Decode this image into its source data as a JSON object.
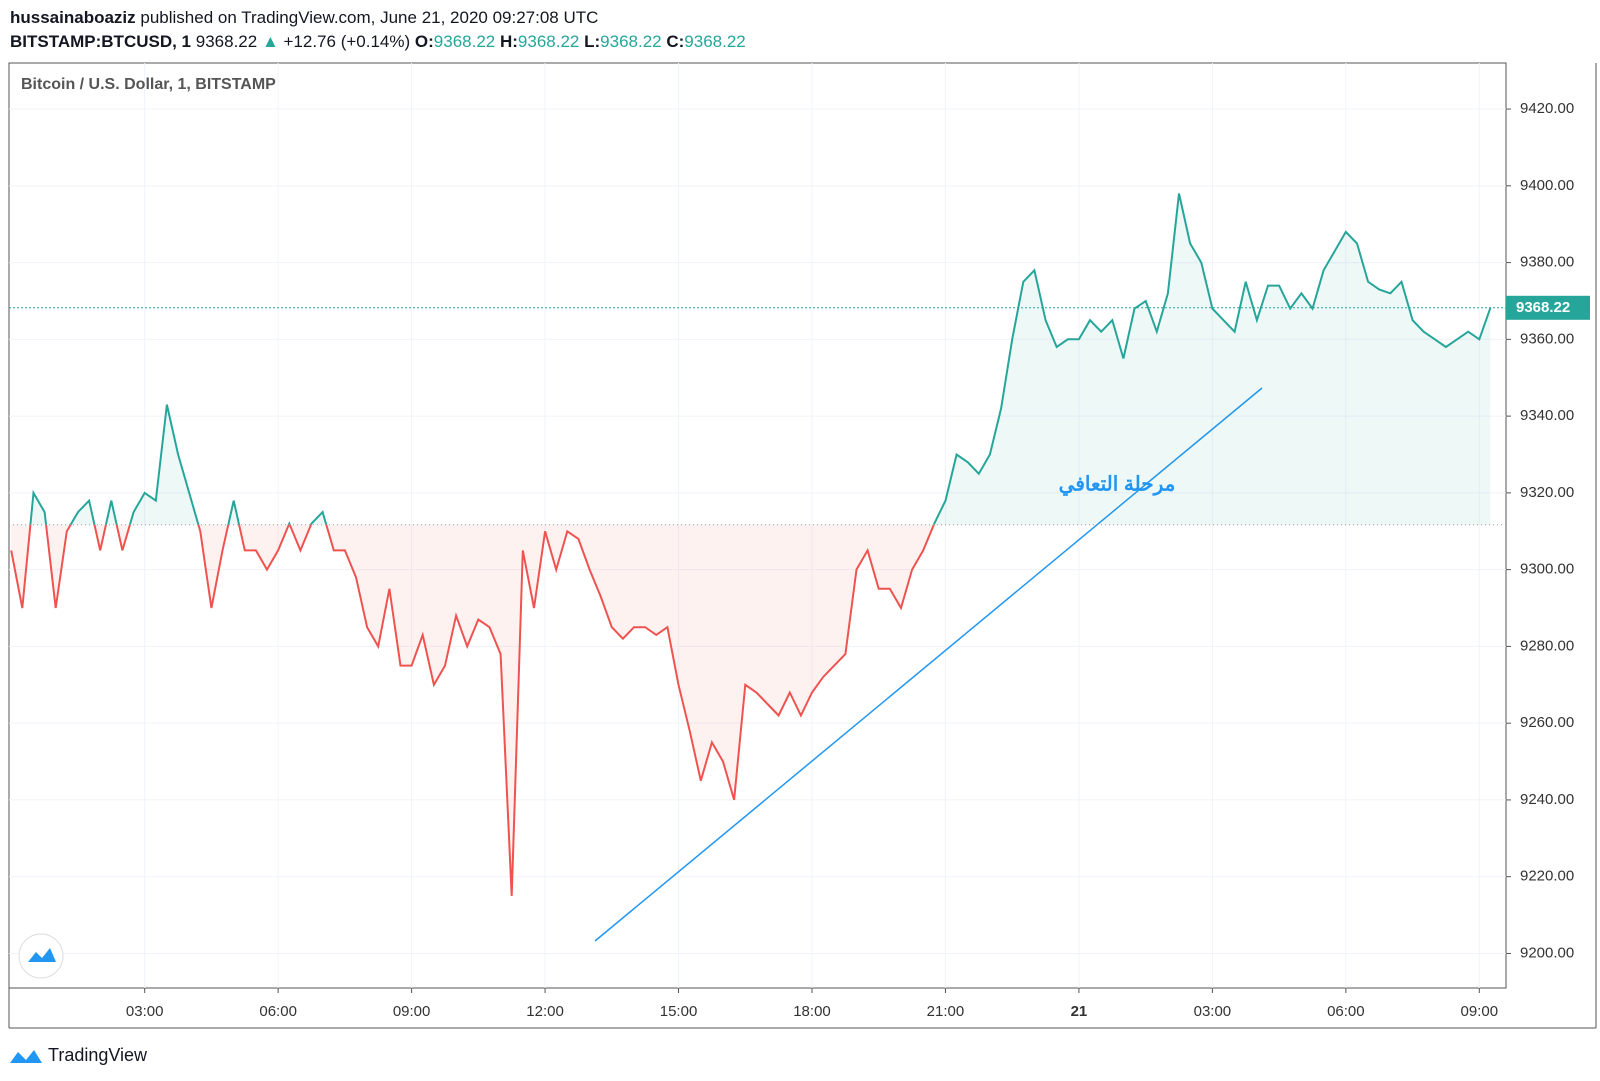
{
  "header": {
    "author": "hussainaboaziz",
    "published": "published on TradingView.com, June 21, 2020 09:27:08 UTC",
    "symbol": "BITSTAMP:BTCUSD, 1",
    "last": "9368.22",
    "arrow": "▲",
    "change": "+12.76 (+0.14%)",
    "ohlc": [
      {
        "label": "O:",
        "value": "9368.22"
      },
      {
        "label": "H:",
        "value": "9368.22"
      },
      {
        "label": "L:",
        "value": "9368.22"
      },
      {
        "label": "C:",
        "value": "9368.22"
      }
    ]
  },
  "chart_data": {
    "type": "baseline",
    "title": "Bitcoin / U.S. Dollar, 1, BITSTAMP",
    "x": [
      0,
      0.25,
      0.5,
      0.75,
      1,
      1.25,
      1.5,
      1.75,
      2,
      2.25,
      2.5,
      2.75,
      3,
      3.25,
      3.5,
      3.75,
      4,
      4.25,
      4.5,
      4.75,
      5,
      5.25,
      5.5,
      5.75,
      6,
      6.25,
      6.5,
      6.75,
      7,
      7.25,
      7.5,
      7.75,
      8,
      8.25,
      8.5,
      8.75,
      9,
      9.25,
      9.5,
      9.75,
      10,
      10.25,
      10.5,
      10.75,
      11,
      11.25,
      11.5,
      11.75,
      12,
      12.25,
      12.5,
      12.75,
      13,
      13.25,
      13.5,
      13.75,
      14,
      14.25,
      14.5,
      14.75,
      15,
      15.25,
      15.5,
      15.75,
      16,
      16.25,
      16.5,
      16.75,
      17,
      17.25,
      17.5,
      17.75,
      18,
      18.25,
      18.5,
      18.75,
      19,
      19.25,
      19.5,
      19.75,
      20,
      20.25,
      20.5,
      20.75,
      21,
      21.25,
      21.5,
      21.75,
      22,
      22.25,
      22.5,
      22.75,
      23,
      23.25,
      23.5,
      23.75,
      24,
      24.25,
      24.5,
      24.75,
      25,
      25.25,
      25.5,
      25.75,
      26,
      26.25,
      26.5,
      26.75,
      27,
      27.25,
      27.5,
      27.75,
      28,
      28.25,
      28.5,
      28.75,
      29,
      29.25,
      29.5,
      29.75,
      30,
      30.25,
      30.5,
      30.75,
      31,
      31.25,
      31.5,
      31.75,
      32,
      32.25,
      32.5,
      32.75,
      33,
      33.25
    ],
    "values": [
      9305,
      9290,
      9320,
      9315,
      9290,
      9310,
      9315,
      9318,
      9305,
      9318,
      9305,
      9315,
      9320,
      9318,
      9343,
      9330,
      9320,
      9310,
      9290,
      9305,
      9318,
      9305,
      9305,
      9300,
      9305,
      9312,
      9305,
      9312,
      9315,
      9305,
      9305,
      9298,
      9285,
      9280,
      9295,
      9275,
      9275,
      9283,
      9270,
      9275,
      9288,
      9280,
      9287,
      9285,
      9278,
      9215,
      9305,
      9290,
      9310,
      9300,
      9310,
      9308,
      9300,
      9293,
      9285,
      9282,
      9285,
      9285,
      9283,
      9285,
      9270,
      9258,
      9245,
      9255,
      9250,
      9240,
      9270,
      9268,
      9265,
      9262,
      9268,
      9262,
      9268,
      9272,
      9275,
      9278,
      9300,
      9305,
      9295,
      9295,
      9290,
      9300,
      9305,
      9312,
      9318,
      9330,
      9328,
      9325,
      9330,
      9342,
      9360,
      9375,
      9378,
      9365,
      9358,
      9360,
      9360,
      9365,
      9362,
      9365,
      9355,
      9368,
      9370,
      9362,
      9372,
      9398,
      9385,
      9380,
      9368,
      9365,
      9362,
      9375,
      9365,
      9374,
      9374,
      9368,
      9372,
      9368,
      9378,
      9383,
      9388,
      9385,
      9375,
      9373,
      9372,
      9375,
      9365,
      9362,
      9360,
      9358,
      9360,
      9362,
      9360,
      9368.22
    ],
    "baseline": 9311.7,
    "up_color": "#26a69a",
    "down_color": "#ef5350",
    "last_price": {
      "value": 9368.22,
      "label": "9368.22"
    },
    "annotation": "مرحلة التعافي",
    "annotation_color": "#2196f3",
    "xlim": [
      -0.05,
      33.6
    ],
    "ylim": [
      9191,
      9432
    ],
    "xticks": [
      {
        "value": 3,
        "label": "03:00"
      },
      {
        "value": 6,
        "label": "06:00"
      },
      {
        "value": 9,
        "label": "09:00"
      },
      {
        "value": 12,
        "label": "12:00"
      },
      {
        "value": 15,
        "label": "15:00"
      },
      {
        "value": 18,
        "label": "18:00"
      },
      {
        "value": 21,
        "label": "21:00"
      },
      {
        "value": 24,
        "label": "21"
      },
      {
        "value": 27,
        "label": "03:00"
      },
      {
        "value": 30,
        "label": "06:00"
      },
      {
        "value": 33,
        "label": "09:00"
      }
    ],
    "yticks": [
      {
        "value": 9200,
        "label": "9200.00"
      },
      {
        "value": 9220,
        "label": "9220.00"
      },
      {
        "value": 9240,
        "label": "9240.00"
      },
      {
        "value": 9260,
        "label": "9260.00"
      },
      {
        "value": 9280,
        "label": "9280.00"
      },
      {
        "value": 9300,
        "label": "9300.00"
      },
      {
        "value": 9320,
        "label": "9320.00"
      },
      {
        "value": 9340,
        "label": "9340.00"
      },
      {
        "value": 9360,
        "label": "9360.00"
      },
      {
        "value": 9380,
        "label": "9380.00"
      },
      {
        "value": 9400,
        "label": "9400.00"
      },
      {
        "value": 9420,
        "label": "9420.00"
      }
    ],
    "grid": true
  },
  "footer": {
    "brand": "TradingView"
  }
}
